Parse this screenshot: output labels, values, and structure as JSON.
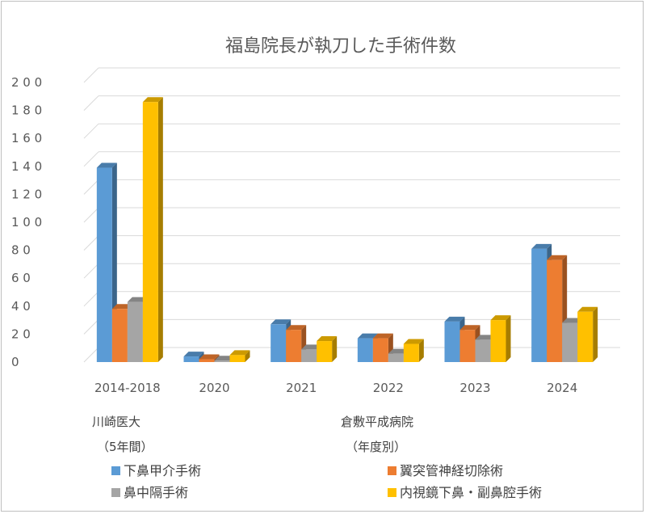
{
  "chart_data": {
    "type": "bar",
    "title": "福島院長が執刀した手術件数",
    "categories": [
      "2014-2018",
      "2020",
      "2021",
      "2022",
      "2023",
      "2024"
    ],
    "y_tick_labels": [
      "0",
      "2 0",
      "4 0",
      "6 0",
      "8 0",
      "1 0 0",
      "1 2 0",
      "1 4 0",
      "1 6 0",
      "1 8 0",
      "2 0 0"
    ],
    "ylim": [
      0,
      200
    ],
    "grid": true,
    "legend_position": "bottom",
    "annotations": {
      "left_line1": "川崎医大",
      "left_line2": "（5年間）",
      "right_line1": "倉敷平成病院",
      "right_line2": "（年度別）"
    },
    "series": [
      {
        "name": "下鼻甲介手術",
        "color": "#5b9bd5",
        "values": [
          139,
          4,
          27,
          17,
          29,
          81
        ]
      },
      {
        "name": "翼突管神経切除術",
        "color": "#ed7d31",
        "values": [
          38,
          2,
          23,
          17,
          23,
          73
        ]
      },
      {
        "name": "鼻中隔手術",
        "color": "#a5a5a5",
        "values": [
          43,
          1,
          9,
          6,
          16,
          28
        ]
      },
      {
        "name": "内視鏡下鼻・副鼻腔手術",
        "color": "#ffc000",
        "values": [
          186,
          5,
          15,
          13,
          30,
          36
        ]
      }
    ]
  }
}
